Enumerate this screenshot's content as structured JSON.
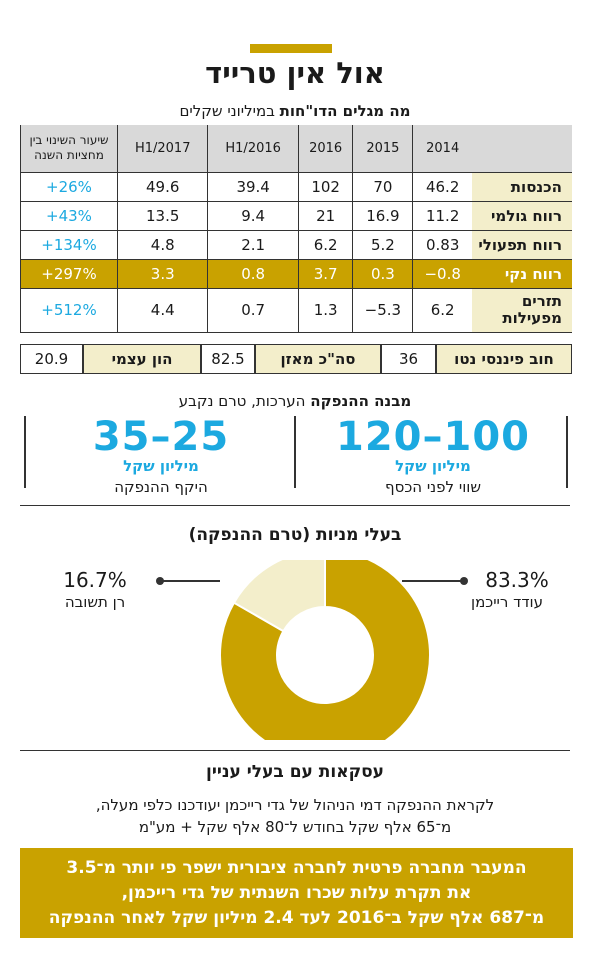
{
  "title": "אול אין טרייד",
  "subtitle": {
    "bold": "מה מגלים הדו\"חות",
    "normal": "במיליוני שקלים"
  },
  "colors": {
    "accent": "#c9a200",
    "light": "#f3eecb",
    "blue": "#1ca9e0"
  },
  "table": {
    "change_header_line1": "שיעור השינוי בין",
    "change_header_line2": "מחציות השנה",
    "columns": [
      "H1/2017",
      "H1/2016",
      "2016",
      "2015",
      "2014"
    ],
    "rows": [
      {
        "label": "הכנסות",
        "values": [
          "49.6",
          "39.4",
          "102",
          "70",
          "46.2"
        ],
        "change": "+26%"
      },
      {
        "label": "רווח גולמי",
        "values": [
          "13.5",
          "9.4",
          "21",
          "16.9",
          "11.2"
        ],
        "change": "+43%"
      },
      {
        "label": "רווח תפעולי",
        "values": [
          "4.8",
          "2.1",
          "6.2",
          "5.2",
          "0.83"
        ],
        "change": "+134%"
      },
      {
        "label": "רווח נקי",
        "values": [
          "3.3",
          "0.8",
          "3.7",
          "0.3",
          "−0.8"
        ],
        "change": "+297%"
      },
      {
        "label_line1": "תזרים",
        "label_line2": "מפעילות",
        "values": [
          "4.4",
          "0.7",
          "1.3",
          "−5.3",
          "6.2"
        ],
        "change": "+512%"
      }
    ]
  },
  "balance": [
    {
      "label": "חוב פיננסי נטו",
      "value": "36"
    },
    {
      "label": "סה\"כ מאזן",
      "value": "82.5"
    },
    {
      "label": "הון עצמי",
      "value": "20.9"
    }
  ],
  "structure": {
    "title_bold": "מבנה ההנפקה",
    "title_normal": "הערכות, טרם נקבע",
    "right": {
      "range": "120–100",
      "unit": "מיליון שקל",
      "label": "שווי לפני הכסף"
    },
    "left": {
      "range": "35–25",
      "unit": "מיליון שקל",
      "label": "היקף ההנפקה"
    }
  },
  "owners_title": "בעלי מניות (טרם ההנפקה)",
  "chart_data": {
    "type": "pie",
    "title": "בעלי מניות (טרם ההנפקה)",
    "labels": [
      "עודד רייכמן",
      "רן תשובה"
    ],
    "values": [
      83.3,
      16.7
    ],
    "value_labels": [
      "83.3%",
      "16.7%"
    ],
    "colors": [
      "#c9a200",
      "#f3eecb"
    ]
  },
  "transactions": {
    "title": "עסקאות עם בעלי עניין",
    "line1": "לקראת ההנפקה דמי הניהול של גדי רייכמן יעודכנו כלפי מעלה,",
    "line2": "מ־65 אלף שקל בחודש ל־80 אלף שקל + מע\"מ"
  },
  "footer": {
    "line1": "המעבר מחברה פרטית לחברה ציבורית ישפר פי יותר מ־3.5",
    "line2": "את תקרת עלות שכרו השנתית של גדי רייכמן,",
    "line3": "מ־687 אלף שקל ב־2016 לעד 2.4 מיליון שקל לאחר ההנפקה"
  }
}
